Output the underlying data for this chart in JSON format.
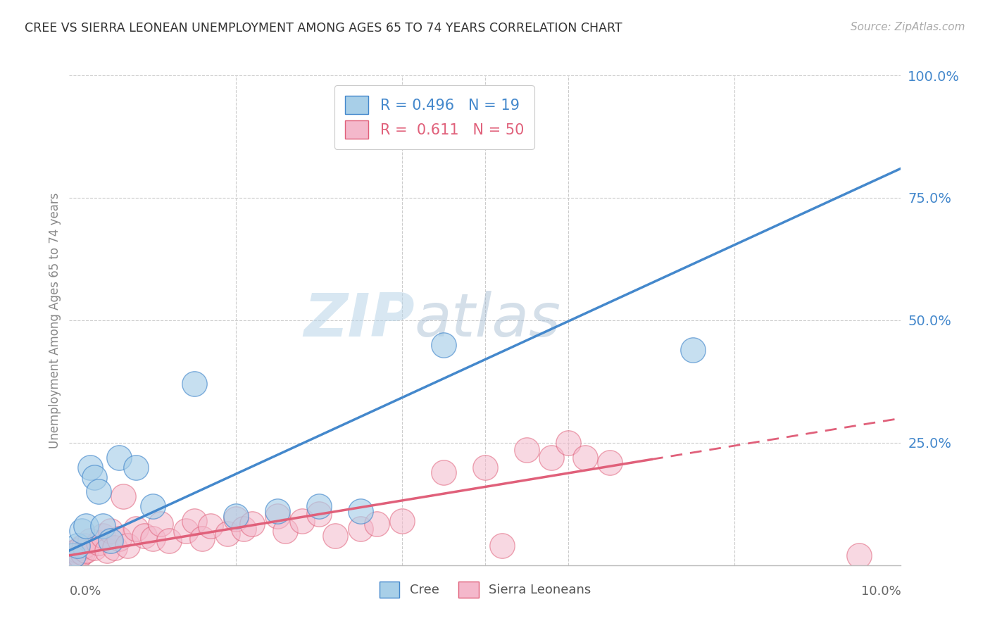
{
  "title": "CREE VS SIERRA LEONEAN UNEMPLOYMENT AMONG AGES 65 TO 74 YEARS CORRELATION CHART",
  "source": "Source: ZipAtlas.com",
  "ylabel": "Unemployment Among Ages 65 to 74 years",
  "xlim": [
    0.0,
    10.0
  ],
  "ylim": [
    0.0,
    100.0
  ],
  "yticks": [
    0,
    25,
    50,
    75,
    100
  ],
  "cree_color": "#a8cfe8",
  "sierra_color": "#f4b8cb",
  "cree_line_color": "#4488cc",
  "sierra_line_color": "#e0607a",
  "cree_label": "Cree",
  "sierra_label": "Sierra Leoneans",
  "cree_R": "0.496",
  "cree_N": "19",
  "sierra_R": "0.611",
  "sierra_N": "50",
  "watermark_color": "#c8dff0",
  "background_color": "#ffffff",
  "grid_color": "#cccccc",
  "cree_line_intercept": 3.0,
  "cree_line_slope": 7.8,
  "sierra_line_intercept": 2.0,
  "sierra_line_slope": 2.8,
  "sierra_line_solid_end": 7.0,
  "cree_points_x": [
    0.05,
    0.1,
    0.15,
    0.2,
    0.25,
    0.3,
    0.35,
    0.4,
    0.5,
    0.6,
    0.8,
    1.0,
    1.5,
    2.0,
    2.5,
    3.0,
    3.5,
    4.5,
    7.5
  ],
  "cree_points_y": [
    2.0,
    4.0,
    7.0,
    8.0,
    20.0,
    18.0,
    15.0,
    8.0,
    5.0,
    22.0,
    20.0,
    12.0,
    37.0,
    10.0,
    11.0,
    12.0,
    11.0,
    45.0,
    44.0
  ],
  "sierra_points_x": [
    0.02,
    0.04,
    0.06,
    0.08,
    0.1,
    0.12,
    0.14,
    0.16,
    0.18,
    0.2,
    0.25,
    0.3,
    0.35,
    0.4,
    0.45,
    0.5,
    0.55,
    0.6,
    0.65,
    0.7,
    0.8,
    0.9,
    1.0,
    1.1,
    1.2,
    1.4,
    1.5,
    1.6,
    1.7,
    1.9,
    2.0,
    2.1,
    2.2,
    2.5,
    2.6,
    2.8,
    3.0,
    3.2,
    3.5,
    3.7,
    4.0,
    4.5,
    5.0,
    5.2,
    5.5,
    5.8,
    6.0,
    6.2,
    6.5,
    9.5
  ],
  "sierra_points_y": [
    2.0,
    2.5,
    1.5,
    2.0,
    3.0,
    2.0,
    3.5,
    2.5,
    4.0,
    3.0,
    5.0,
    3.5,
    4.5,
    6.0,
    3.0,
    7.0,
    3.5,
    5.5,
    14.0,
    4.0,
    7.5,
    6.0,
    5.5,
    8.5,
    5.0,
    7.0,
    9.0,
    5.5,
    8.0,
    6.5,
    9.5,
    7.5,
    8.5,
    10.0,
    7.0,
    9.0,
    10.5,
    6.0,
    7.5,
    8.5,
    9.0,
    19.0,
    20.0,
    4.0,
    23.5,
    22.0,
    25.0,
    22.0,
    21.0,
    2.0
  ]
}
